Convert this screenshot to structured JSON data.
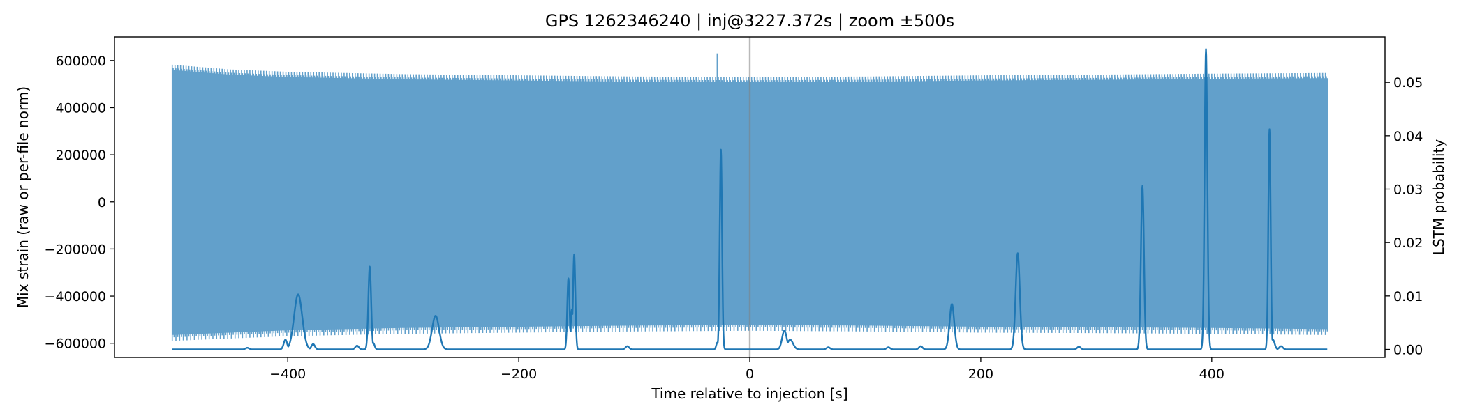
{
  "chart_data": {
    "type": "line",
    "title": "GPS 1262346240 | inj@3227.372s | zoom ±500s",
    "xlabel": "Time relative to injection [s]",
    "ylabel_left": "Mix strain (raw or per-file norm)",
    "ylabel_right": "LSTM probability",
    "xlim": [
      -550,
      550
    ],
    "ylim_left": [
      -660000,
      700000
    ],
    "ylim_right": [
      -0.0015,
      0.0585
    ],
    "x_ticks": [
      -400,
      -200,
      0,
      200,
      400
    ],
    "x_tick_labels": [
      "−400",
      "−200",
      "0",
      "200",
      "400"
    ],
    "y_left_ticks": [
      -600000,
      -400000,
      -200000,
      0,
      200000,
      400000,
      600000
    ],
    "y_left_tick_labels": [
      "−600000",
      "−400000",
      "−200000",
      "0",
      "200000",
      "400000",
      "600000"
    ],
    "y_right_ticks": [
      0.0,
      0.01,
      0.02,
      0.03,
      0.04,
      0.05
    ],
    "y_right_tick_labels": [
      "0.00",
      "0.01",
      "0.02",
      "0.03",
      "0.04",
      "0.05"
    ],
    "grid": false,
    "colors": {
      "strain": "#62a0cb",
      "probability": "#1f77b4",
      "injection_line": "#7f7f7f"
    },
    "strain_series": {
      "axis": "left",
      "x_range": [
        -500,
        500
      ],
      "envelope_upper": [
        [
          -500,
          560000
        ],
        [
          -450,
          540000
        ],
        [
          -400,
          530000
        ],
        [
          -300,
          520000
        ],
        [
          -200,
          515000
        ],
        [
          -100,
          510000
        ],
        [
          0,
          508000
        ],
        [
          100,
          510000
        ],
        [
          200,
          515000
        ],
        [
          300,
          518000
        ],
        [
          400,
          522000
        ],
        [
          500,
          525000
        ]
      ],
      "envelope_lower": [
        [
          -500,
          -565000
        ],
        [
          -450,
          -555000
        ],
        [
          -400,
          -545000
        ],
        [
          -300,
          -535000
        ],
        [
          -200,
          -530000
        ],
        [
          -100,
          -525000
        ],
        [
          0,
          -522000
        ],
        [
          100,
          -525000
        ],
        [
          200,
          -530000
        ],
        [
          300,
          -532000
        ],
        [
          400,
          -535000
        ],
        [
          500,
          -540000
        ]
      ],
      "spikes": [
        [
          -28,
          630000
        ],
        [
          395,
          630000
        ]
      ]
    },
    "probability_series": {
      "axis": "right",
      "baseline": 0.0,
      "x_range": [
        -500,
        500
      ],
      "peaks": [
        {
          "x": -435,
          "y": 0.0003,
          "w": 1.5
        },
        {
          "x": -402,
          "y": 0.0018,
          "w": 1.5
        },
        {
          "x": -391,
          "y": 0.0103,
          "w": 3.5
        },
        {
          "x": -378,
          "y": 0.001,
          "w": 1.5
        },
        {
          "x": -340,
          "y": 0.0007,
          "w": 1.5
        },
        {
          "x": -329,
          "y": 0.0155,
          "w": 1.2
        },
        {
          "x": -326,
          "y": 0.0012,
          "w": 1.2
        },
        {
          "x": -272,
          "y": 0.0063,
          "w": 3.0
        },
        {
          "x": -157,
          "y": 0.0133,
          "w": 1.0
        },
        {
          "x": -154,
          "y": 0.0075,
          "w": 1.0
        },
        {
          "x": -152,
          "y": 0.0178,
          "w": 1.0
        },
        {
          "x": -106,
          "y": 0.0006,
          "w": 1.5
        },
        {
          "x": -28,
          "y": 0.0013,
          "w": 1.0
        },
        {
          "x": -25,
          "y": 0.0374,
          "w": 1.0
        },
        {
          "x": 30,
          "y": 0.0035,
          "w": 2.0
        },
        {
          "x": 35,
          "y": 0.0018,
          "w": 2.5
        },
        {
          "x": 68,
          "y": 0.0004,
          "w": 1.5
        },
        {
          "x": 120,
          "y": 0.0004,
          "w": 1.5
        },
        {
          "x": 148,
          "y": 0.0006,
          "w": 1.5
        },
        {
          "x": 175,
          "y": 0.0085,
          "w": 2.0
        },
        {
          "x": 232,
          "y": 0.018,
          "w": 1.8
        },
        {
          "x": 285,
          "y": 0.0005,
          "w": 1.5
        },
        {
          "x": 340,
          "y": 0.0306,
          "w": 1.3
        },
        {
          "x": 395,
          "y": 0.0562,
          "w": 1.2
        },
        {
          "x": 450,
          "y": 0.0412,
          "w": 1.0
        },
        {
          "x": 453,
          "y": 0.0018,
          "w": 1.5
        },
        {
          "x": 460,
          "y": 0.0006,
          "w": 1.5
        }
      ]
    },
    "annotations": [
      {
        "type": "vline",
        "x": 0
      }
    ]
  }
}
